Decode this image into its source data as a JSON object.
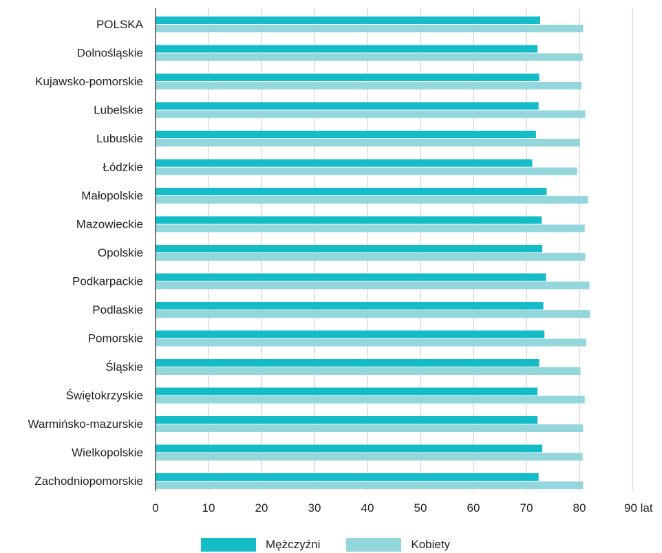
{
  "chart_data": {
    "type": "bar",
    "orientation": "horizontal",
    "categories": [
      "POLSKA",
      "Dolnośląskie",
      "Kujawsko-pomorskie",
      "Lubelskie",
      "Lubuskie",
      "Łódzkie",
      "Małopolskie",
      "Mazowieckie",
      "Opolskie",
      "Podkarpackie",
      "Podlaskie",
      "Pomorskie",
      "Śląskie",
      "Świętokrzyskie",
      "Warmińsko-mazurskie",
      "Wielkopolskie",
      "Zachodniopomorskie"
    ],
    "series": [
      {
        "name": "Mężczyźni",
        "color": "#14bcc8",
        "values": [
          72.6,
          72.1,
          72.4,
          72.3,
          71.8,
          71.1,
          73.8,
          72.9,
          73.0,
          73.7,
          73.2,
          73.4,
          72.4,
          72.1,
          72.1,
          73.0,
          72.3
        ]
      },
      {
        "name": "Kobiety",
        "color": "#93d6dc",
        "values": [
          80.7,
          80.6,
          80.4,
          81.1,
          80.1,
          79.6,
          81.6,
          81.0,
          81.1,
          81.9,
          82.0,
          81.3,
          80.2,
          81.0,
          80.7,
          80.6,
          80.7
        ]
      }
    ],
    "xticks": [
      "0",
      "10",
      "20",
      "30",
      "40",
      "50",
      "60",
      "70",
      "80",
      "90 lat"
    ],
    "xlim": [
      0,
      90
    ],
    "grid": true,
    "legend_position": "bottom"
  }
}
